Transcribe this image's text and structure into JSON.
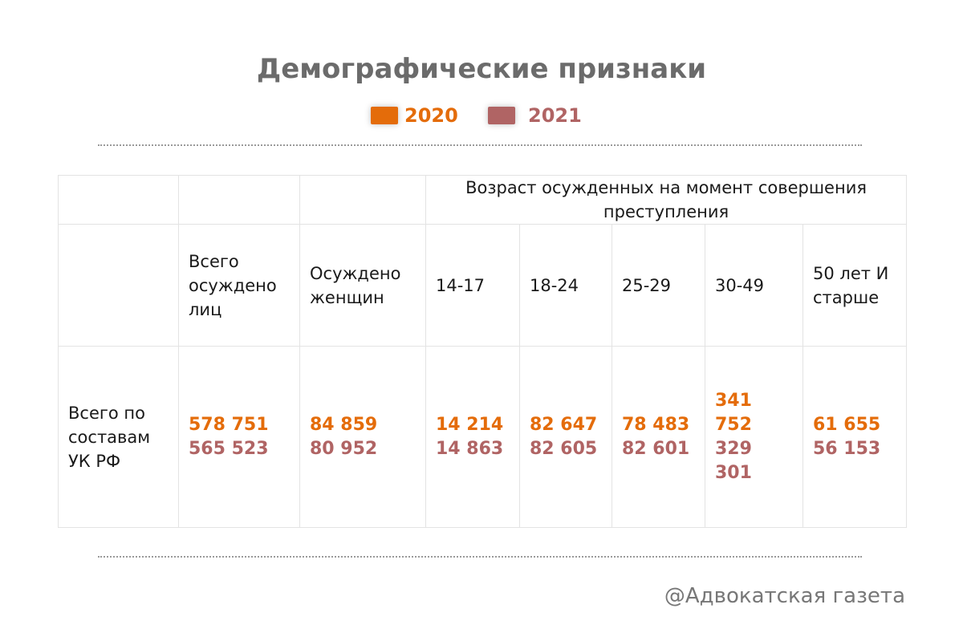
{
  "chart_data": {
    "type": "table",
    "title": "Демографические признаки",
    "legend": [
      {
        "name": "2020",
        "color": "#e46c0a"
      },
      {
        "name": "2021",
        "color": "#b06464"
      }
    ],
    "group_header": "Возраст осужденных на момент совершения преступления",
    "columns": [
      "Всего осуждено лиц",
      "Осуждено женщин",
      "14-17",
      "18-24",
      "25-29",
      "30-49",
      "50 лет И старше"
    ],
    "rows": [
      {
        "label": "Всего по составам УК РФ",
        "values_2020": [
          "578 751",
          "84 859",
          "14 214",
          "82 647",
          "78 483",
          "341 752",
          "61 655"
        ],
        "values_2021": [
          "565 523",
          "80 952",
          "14 863",
          "82 605",
          "82 601",
          "329 301",
          "56 153"
        ]
      }
    ]
  },
  "watermark": "@Адвокатская газета"
}
